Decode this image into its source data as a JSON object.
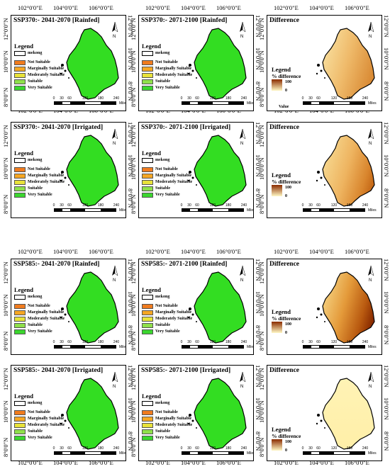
{
  "coords": {
    "lon1": "102°0'0\"E",
    "lon2": "104°0'0\"E",
    "lon3": "106°0'0\"E",
    "lat_top": "12°0'0\"N",
    "lat_mid": "10°0'0\"N",
    "lat_bot": "8°0'0\"N"
  },
  "legend": {
    "title": "Legend",
    "boundary": "mekong",
    "classes": [
      {
        "label": "Not Suitable",
        "color": "#f07b1e"
      },
      {
        "label": "Marginally Suitable",
        "color": "#f5a623"
      },
      {
        "label": "Moderately Suitable",
        "color": "#e8e23a"
      },
      {
        "label": "Suitable",
        "color": "#8fe04b"
      },
      {
        "label": "Very Suitable",
        "color": "#3bd62f"
      }
    ]
  },
  "difference_legend": {
    "title": "Legend",
    "subtitle": "% difference",
    "max": "100",
    "min": "0",
    "value_label": "Value"
  },
  "scale": {
    "ticks": [
      "0",
      "30",
      "60",
      "120",
      "180",
      "240"
    ],
    "unit": "Miles"
  },
  "north": "N",
  "panels": [
    {
      "title": "SSP370:- 2041-2070 [Rainfed]"
    },
    {
      "title": "SSP370:- 2071-2100 [Rainfed]"
    },
    {
      "title": "Difference"
    },
    {
      "title": "SSP370:- 2041-2070 [Irrigated]"
    },
    {
      "title": "SSP370:- 2071-2100 [Irrigated]"
    },
    {
      "title": "Difference"
    },
    {
      "title": "SSP585:- 2041-2070 [Rainfed]"
    },
    {
      "title": "SSP585:- 2071-2100 [Rainfed]"
    },
    {
      "title": "Difference"
    },
    {
      "title": "SSP585:- 2041-2070 [Irrigated]"
    },
    {
      "title": "SSP585:- 2071-2100 [Irrigated]"
    },
    {
      "title": "Difference"
    }
  ],
  "colors": {
    "very_suitable": "#33dd22",
    "diff_low": "#fff7c4",
    "diff_high": "#8a2c00"
  }
}
